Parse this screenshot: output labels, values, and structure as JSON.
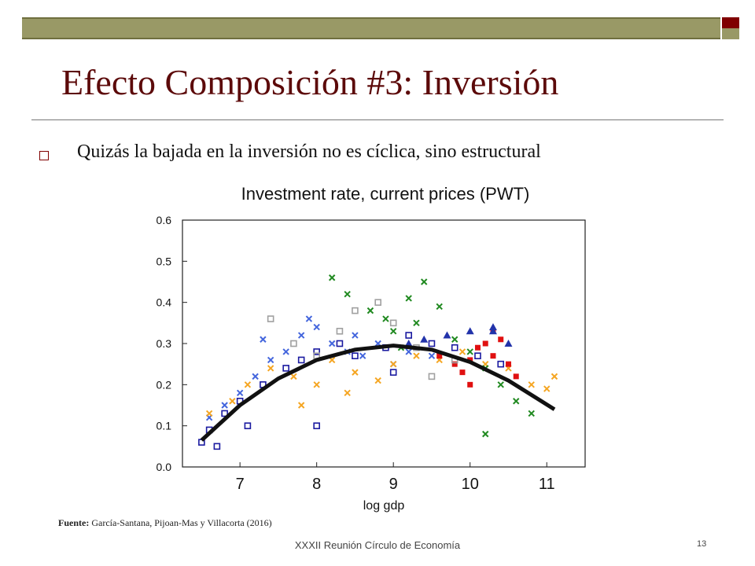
{
  "slide": {
    "title": "Efecto Composición #3: Inversión",
    "bullet": "Quizás la bajada en la inversión no es cíclica, sino estructural",
    "source_label": "Fuente:",
    "source_text": "García-Santana, Pijoan-Mas y Villacorta (2016)",
    "footer": "XXXII Reunión Círculo de Economía",
    "page_number": "13",
    "colors": {
      "title": "#5c0a0a",
      "bar_olive": "#999966",
      "bar_maroon": "#800000"
    }
  },
  "chart_data": {
    "type": "scatter",
    "title": "Investment rate, current prices (PWT)",
    "xlabel": "log gdp",
    "ylabel": "",
    "xlim": [
      6.25,
      11.5
    ],
    "ylim": [
      0.0,
      0.6
    ],
    "x_ticks": [
      "7",
      "8",
      "9",
      "10",
      "11"
    ],
    "y_ticks": [
      "0.0",
      "0.1",
      "0.2",
      "0.3",
      "0.4",
      "0.5",
      "0.6"
    ],
    "grid": false,
    "fit_curve": {
      "x": [
        6.5,
        7.0,
        7.5,
        8.0,
        8.5,
        9.0,
        9.5,
        10.0,
        10.5,
        11.1
      ],
      "y": [
        0.065,
        0.15,
        0.215,
        0.26,
        0.285,
        0.295,
        0.285,
        0.255,
        0.21,
        0.14
      ]
    },
    "series": [
      {
        "color": "#1a1aa0",
        "marker": "square-o",
        "x": [
          6.5,
          6.6,
          6.8,
          7.0,
          7.3,
          7.6,
          7.8,
          8.0,
          8.3,
          8.5,
          8.9,
          9.2,
          9.5,
          9.8,
          10.1,
          10.4,
          6.7,
          7.1,
          8.0,
          9.0
        ],
        "y": [
          0.06,
          0.09,
          0.13,
          0.16,
          0.2,
          0.24,
          0.26,
          0.28,
          0.3,
          0.27,
          0.29,
          0.32,
          0.3,
          0.29,
          0.27,
          0.25,
          0.05,
          0.1,
          0.1,
          0.23
        ]
      },
      {
        "color": "#4466dd",
        "marker": "x",
        "x": [
          6.6,
          6.8,
          7.0,
          7.2,
          7.4,
          7.6,
          7.8,
          8.0,
          8.2,
          8.4,
          8.6,
          8.8,
          9.0,
          9.2,
          9.5,
          7.3,
          7.9,
          8.5
        ],
        "y": [
          0.12,
          0.15,
          0.18,
          0.22,
          0.26,
          0.28,
          0.32,
          0.34,
          0.3,
          0.28,
          0.27,
          0.3,
          0.25,
          0.28,
          0.27,
          0.31,
          0.36,
          0.32
        ]
      },
      {
        "color": "#f5a623",
        "marker": "x",
        "x": [
          6.6,
          6.9,
          7.1,
          7.4,
          7.7,
          8.0,
          8.2,
          8.5,
          8.8,
          9.0,
          9.3,
          9.6,
          9.9,
          10.2,
          10.5,
          10.8,
          11.1,
          11.0,
          7.8,
          8.4
        ],
        "y": [
          0.13,
          0.16,
          0.2,
          0.24,
          0.22,
          0.2,
          0.26,
          0.23,
          0.21,
          0.25,
          0.27,
          0.26,
          0.28,
          0.25,
          0.24,
          0.2,
          0.22,
          0.19,
          0.15,
          0.18
        ]
      },
      {
        "color": "#218a21",
        "marker": "x",
        "x": [
          8.2,
          8.4,
          8.7,
          8.9,
          9.0,
          9.2,
          9.4,
          9.6,
          9.8,
          10.0,
          10.2,
          10.4,
          10.6,
          10.8,
          9.1,
          9.3,
          10.2
        ],
        "y": [
          0.46,
          0.42,
          0.38,
          0.36,
          0.33,
          0.41,
          0.45,
          0.39,
          0.31,
          0.28,
          0.24,
          0.2,
          0.16,
          0.13,
          0.29,
          0.35,
          0.08
        ]
      },
      {
        "color": "#e01010",
        "marker": "square",
        "x": [
          9.6,
          9.8,
          10.0,
          10.1,
          10.2,
          10.3,
          10.4,
          10.5,
          10.6,
          9.9,
          10.0,
          10.3
        ],
        "y": [
          0.27,
          0.25,
          0.26,
          0.29,
          0.3,
          0.27,
          0.31,
          0.25,
          0.22,
          0.23,
          0.2,
          0.33
        ]
      },
      {
        "color": "#a0a0a0",
        "marker": "square-o",
        "x": [
          7.4,
          7.7,
          8.0,
          8.3,
          8.5,
          8.8,
          9.0,
          9.3,
          9.5,
          9.8
        ],
        "y": [
          0.36,
          0.3,
          0.27,
          0.33,
          0.38,
          0.4,
          0.35,
          0.29,
          0.22,
          0.26
        ]
      },
      {
        "color": "#2233aa",
        "marker": "triangle",
        "x": [
          9.2,
          9.4,
          9.7,
          10.0,
          10.3,
          10.3,
          10.5
        ],
        "y": [
          0.3,
          0.31,
          0.32,
          0.33,
          0.34,
          0.33,
          0.3
        ]
      }
    ]
  }
}
